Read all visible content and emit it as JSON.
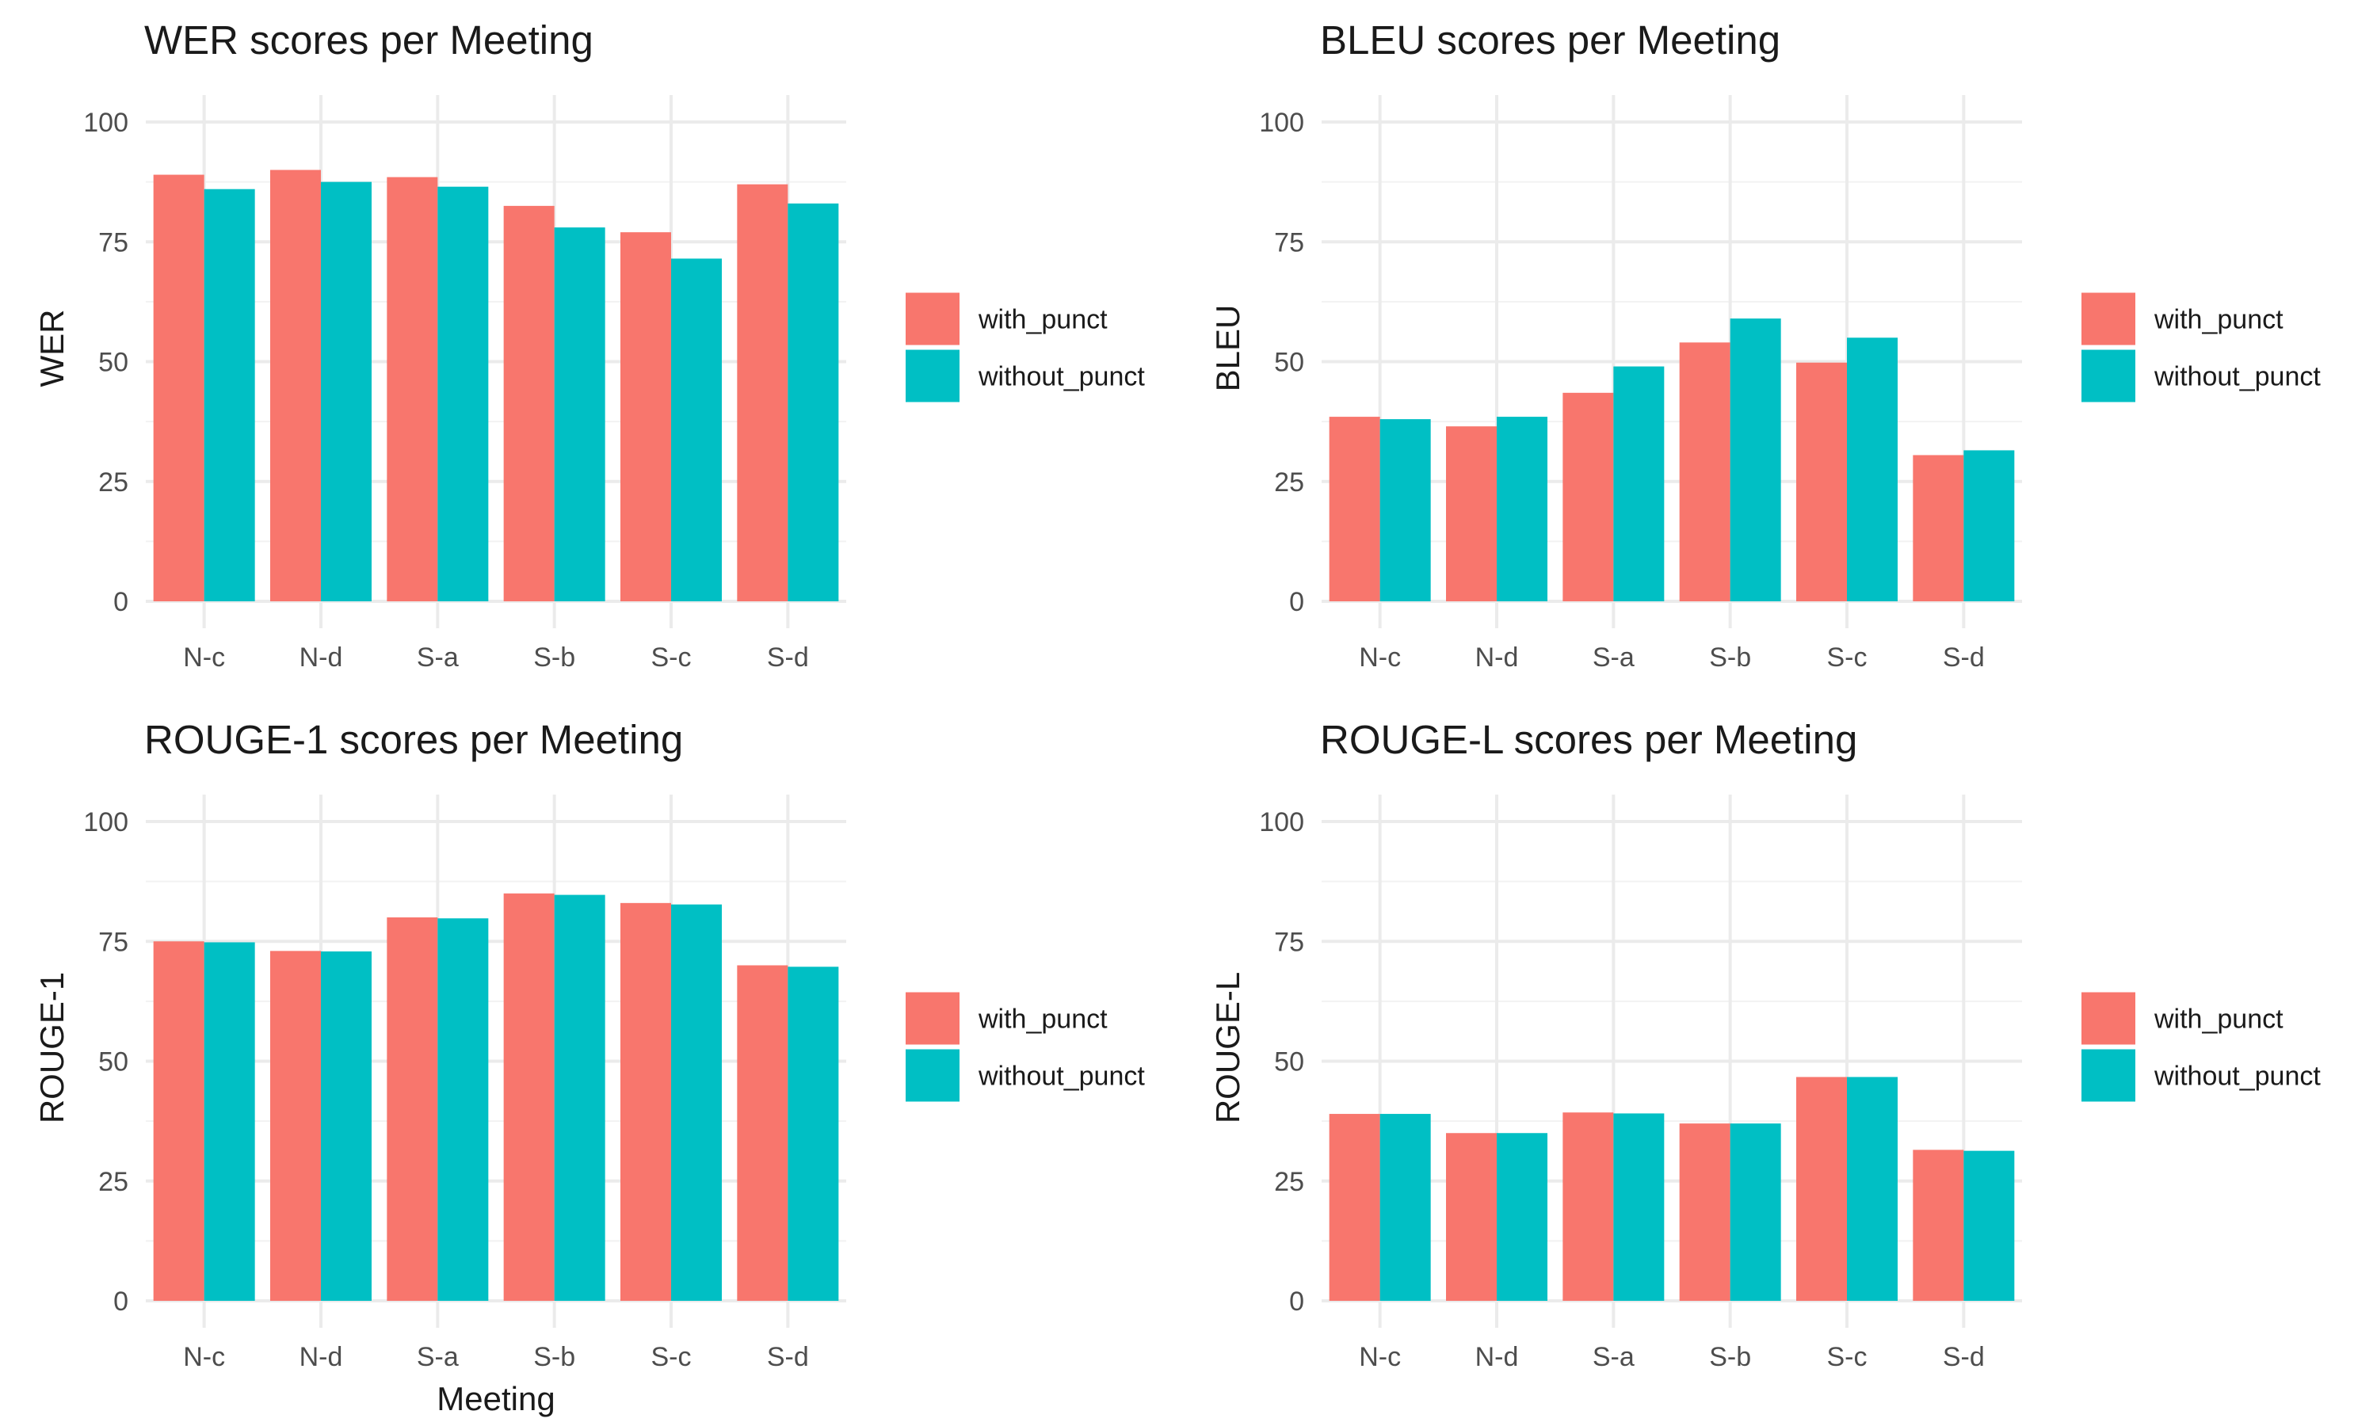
{
  "colors": {
    "with_punct": "#F8766D",
    "without_punct": "#00BFC4"
  },
  "legend": {
    "items": [
      "with_punct",
      "without_punct"
    ]
  },
  "x_axis_title": "Meeting",
  "chart_data": [
    {
      "type": "bar",
      "title": "WER scores per Meeting",
      "xlabel": "",
      "ylabel": "WER",
      "ylim": [
        0,
        100
      ],
      "yticks": [
        0,
        25,
        50,
        75,
        100
      ],
      "categories": [
        "N-c",
        "N-d",
        "S-a",
        "S-b",
        "S-c",
        "S-d"
      ],
      "series": [
        {
          "name": "with_punct",
          "values": [
            89,
            90,
            88.5,
            82.5,
            77,
            87
          ]
        },
        {
          "name": "without_punct",
          "values": [
            86,
            87.5,
            86.5,
            78,
            71.5,
            83
          ]
        }
      ],
      "legend_position": "right",
      "grid": true
    },
    {
      "type": "bar",
      "title": "BLEU scores per Meeting",
      "xlabel": "",
      "ylabel": "BLEU",
      "ylim": [
        0,
        100
      ],
      "yticks": [
        0,
        25,
        50,
        75,
        100
      ],
      "categories": [
        "N-c",
        "N-d",
        "S-a",
        "S-b",
        "S-c",
        "S-d"
      ],
      "series": [
        {
          "name": "with_punct",
          "values": [
            38.5,
            36.5,
            43.5,
            54,
            49.8,
            30.5
          ]
        },
        {
          "name": "without_punct",
          "values": [
            38,
            38.5,
            49,
            59,
            55,
            31.5
          ]
        }
      ],
      "legend_position": "right",
      "grid": true
    },
    {
      "type": "bar",
      "title": "ROUGE-1 scores per Meeting",
      "xlabel": "Meeting",
      "ylabel": "ROUGE-1",
      "ylim": [
        0,
        100
      ],
      "yticks": [
        0,
        25,
        50,
        75,
        100
      ],
      "categories": [
        "N-c",
        "N-d",
        "S-a",
        "S-b",
        "S-c",
        "S-d"
      ],
      "series": [
        {
          "name": "with_punct",
          "values": [
            75,
            73,
            80,
            85,
            83,
            70
          ]
        },
        {
          "name": "without_punct",
          "values": [
            74.8,
            72.9,
            79.8,
            84.7,
            82.7,
            69.7
          ]
        }
      ],
      "legend_position": "right",
      "grid": true
    },
    {
      "type": "bar",
      "title": "ROUGE-L scores per Meeting",
      "xlabel": "",
      "ylabel": "ROUGE-L",
      "ylim": [
        0,
        100
      ],
      "yticks": [
        0,
        25,
        50,
        75,
        100
      ],
      "categories": [
        "N-c",
        "N-d",
        "S-a",
        "S-b",
        "S-c",
        "S-d"
      ],
      "series": [
        {
          "name": "with_punct",
          "values": [
            39,
            35,
            39.3,
            37,
            46.7,
            31.5
          ]
        },
        {
          "name": "without_punct",
          "values": [
            39,
            35,
            39.1,
            37,
            46.7,
            31.3
          ]
        }
      ],
      "legend_position": "right",
      "grid": true
    }
  ]
}
